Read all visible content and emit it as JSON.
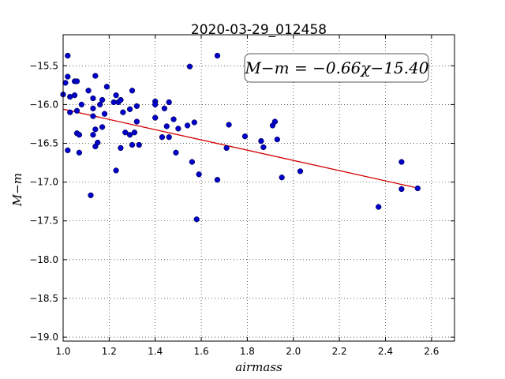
{
  "chart_data": {
    "type": "scatter",
    "title": "2020-03-29_012458",
    "xlabel": "airmass",
    "ylabel": "M−m",
    "xlim": [
      1.0,
      2.7
    ],
    "ylim": [
      -19.05,
      -15.1
    ],
    "x_ticks": [
      "1.0",
      "1.2",
      "1.4",
      "1.6",
      "1.8",
      "2.0",
      "2.2",
      "2.4",
      "2.6"
    ],
    "x_tick_values": [
      1.0,
      1.2,
      1.4,
      1.6,
      1.8,
      2.0,
      2.2,
      2.4,
      2.6
    ],
    "y_ticks": [
      "−15.5",
      "−16.0",
      "−16.5",
      "−17.0",
      "−17.5",
      "−18.0",
      "−18.5",
      "−19.0"
    ],
    "y_tick_values": [
      -15.5,
      -16.0,
      -16.5,
      -17.0,
      -17.5,
      -18.0,
      -18.5,
      -19.0
    ],
    "grid": true,
    "annotation": "M−m = −0.66χ−15.40",
    "fit": {
      "slope": -0.66,
      "intercept": -15.4,
      "x_range": [
        1.0,
        2.54
      ],
      "color": "#d40000"
    },
    "point_color": "#0000c8",
    "points": [
      [
        1.0,
        -15.87
      ],
      [
        1.01,
        -15.72
      ],
      [
        1.02,
        -15.37
      ],
      [
        1.02,
        -15.64
      ],
      [
        1.02,
        -16.59
      ],
      [
        1.03,
        -15.9
      ],
      [
        1.03,
        -16.1
      ],
      [
        1.05,
        -15.88
      ],
      [
        1.05,
        -15.7
      ],
      [
        1.06,
        -15.7
      ],
      [
        1.06,
        -16.08
      ],
      [
        1.06,
        -16.37
      ],
      [
        1.07,
        -16.39
      ],
      [
        1.07,
        -16.62
      ],
      [
        1.08,
        -16.0
      ],
      [
        1.11,
        -15.82
      ],
      [
        1.12,
        -17.17
      ],
      [
        1.13,
        -15.92
      ],
      [
        1.13,
        -16.05
      ],
      [
        1.13,
        -16.15
      ],
      [
        1.13,
        -16.39
      ],
      [
        1.14,
        -15.63
      ],
      [
        1.14,
        -16.32
      ],
      [
        1.14,
        -16.54
      ],
      [
        1.15,
        -16.49
      ],
      [
        1.16,
        -16.0
      ],
      [
        1.17,
        -15.94
      ],
      [
        1.17,
        -16.29
      ],
      [
        1.18,
        -16.12
      ],
      [
        1.19,
        -15.77
      ],
      [
        1.22,
        -15.97
      ],
      [
        1.23,
        -15.88
      ],
      [
        1.23,
        -16.85
      ],
      [
        1.24,
        -15.97
      ],
      [
        1.25,
        -15.94
      ],
      [
        1.25,
        -16.56
      ],
      [
        1.26,
        -16.1
      ],
      [
        1.27,
        -16.36
      ],
      [
        1.29,
        -16.39
      ],
      [
        1.29,
        -16.06
      ],
      [
        1.3,
        -15.82
      ],
      [
        1.3,
        -16.52
      ],
      [
        1.31,
        -16.36
      ],
      [
        1.32,
        -16.02
      ],
      [
        1.32,
        -16.22
      ],
      [
        1.33,
        -16.52
      ],
      [
        1.4,
        -15.96
      ],
      [
        1.4,
        -16.0
      ],
      [
        1.4,
        -16.17
      ],
      [
        1.43,
        -16.42
      ],
      [
        1.44,
        -16.05
      ],
      [
        1.45,
        -16.28
      ],
      [
        1.46,
        -15.97
      ],
      [
        1.46,
        -16.42
      ],
      [
        1.48,
        -16.19
      ],
      [
        1.49,
        -16.62
      ],
      [
        1.5,
        -16.31
      ],
      [
        1.54,
        -16.27
      ],
      [
        1.55,
        -15.51
      ],
      [
        1.56,
        -16.74
      ],
      [
        1.57,
        -16.23
      ],
      [
        1.58,
        -17.48
      ],
      [
        1.59,
        -16.9
      ],
      [
        1.67,
        -15.37
      ],
      [
        1.67,
        -16.97
      ],
      [
        1.71,
        -16.56
      ],
      [
        1.72,
        -16.26
      ],
      [
        1.79,
        -16.41
      ],
      [
        1.86,
        -16.47
      ],
      [
        1.87,
        -16.55
      ],
      [
        1.91,
        -16.27
      ],
      [
        1.92,
        -16.22
      ],
      [
        1.93,
        -16.45
      ],
      [
        1.95,
        -16.94
      ],
      [
        2.03,
        -16.86
      ],
      [
        2.37,
        -17.32
      ],
      [
        2.47,
        -16.74
      ],
      [
        2.47,
        -17.09
      ],
      [
        2.54,
        -17.08
      ]
    ]
  }
}
